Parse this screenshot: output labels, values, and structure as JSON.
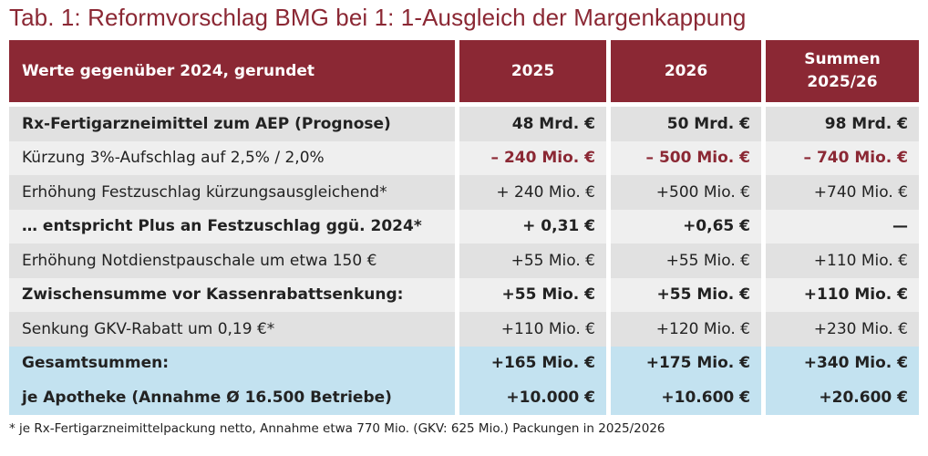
{
  "title": "Tab. 1: Reformvorschlag BMG bei 1: 1-Ausgleich der Margenkappung",
  "header": {
    "col0": "Werte gegenüber 2024, gerundet",
    "col1": "2025",
    "col2": "2026",
    "col3_line1": "Summen",
    "col3_line2": "2025/26"
  },
  "rows": [
    {
      "label": "Rx-Fertigarzneimittel zum AEP (Prognose)",
      "v2025": "48 Mrd. €",
      "v2026": "50 Mrd. €",
      "sum": "98 Mrd. €"
    },
    {
      "label": "Kürzung 3%-Aufschlag auf 2,5% / 2,0%",
      "v2025": "– 240 Mio. €",
      "v2026": "– 500 Mio. €",
      "sum": "– 740 Mio. €"
    },
    {
      "label": "Erhöhung Festzuschlag kürzungsausgleichend*",
      "v2025": "+ 240 Mio. €",
      "v2026": "+500 Mio. €",
      "sum": "+740 Mio. €"
    },
    {
      "label": "… entspricht Plus an Festzuschlag ggü. 2024*",
      "v2025": "+ 0,31 €",
      "v2026": "+0,65 €",
      "sum": "—"
    },
    {
      "label": "Erhöhung Notdienstpauschale um etwa 150 €",
      "v2025": "+55 Mio. €",
      "v2026": "+55 Mio. €",
      "sum": "+110 Mio. €"
    },
    {
      "label": "Zwischensumme vor Kassenrabattsenkung:",
      "v2025": "+55 Mio. €",
      "v2026": "+55 Mio. €",
      "sum": "+110 Mio. €"
    },
    {
      "label": "Senkung GKV-Rabatt um 0,19 €*",
      "v2025": "+110 Mio. €",
      "v2026": "+120 Mio. €",
      "sum": "+230 Mio. €"
    },
    {
      "label": "Gesamtsummen:",
      "v2025": "+165 Mio. €",
      "v2026": "+175 Mio. €",
      "sum": "+340 Mio. €"
    },
    {
      "label": "je Apotheke (Annahme Ø 16.500 Betriebe)",
      "v2025": "+10.000 €",
      "v2026": "+10.600 €",
      "sum": "+20.600 €"
    }
  ],
  "colors": {
    "header_bg": "#8b2834",
    "negative": "#8b2834",
    "highlight_bg": "#c3e2f0"
  },
  "footnote": "* je Rx-Fertigarzneimittelpackung netto, Annahme etwa 770 Mio. (GKV: 625 Mio.) Packungen in 2025/2026"
}
